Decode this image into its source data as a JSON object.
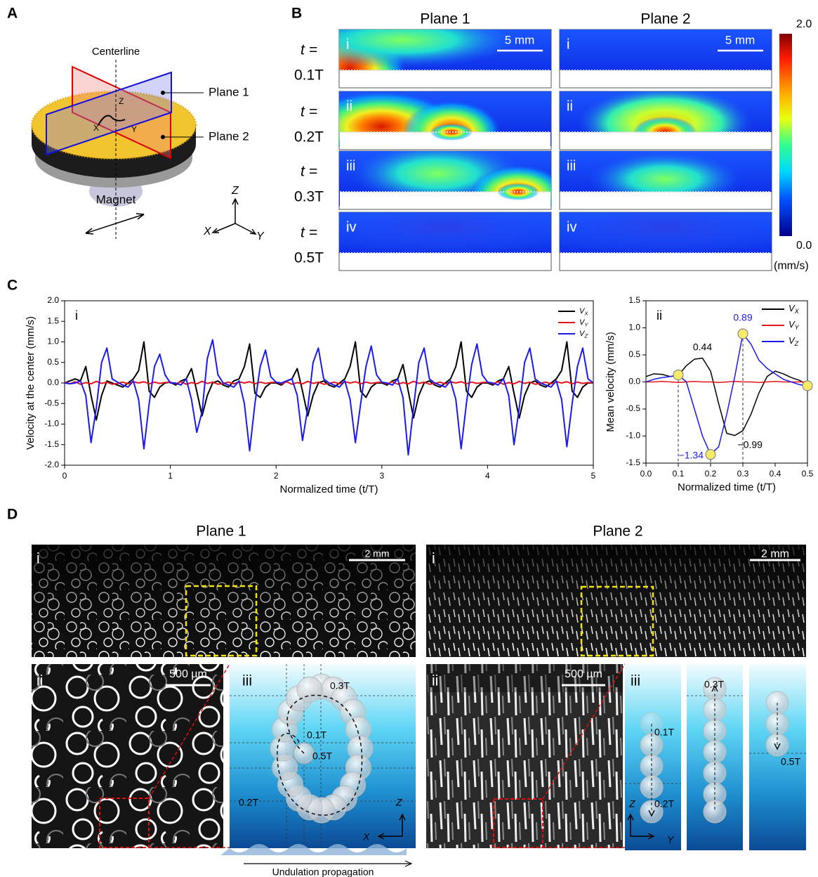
{
  "panel_labels": [
    "A",
    "B",
    "C",
    "D"
  ],
  "panel_a": {
    "centerline": "Centerline",
    "plane1": "Plane 1",
    "plane2": "Plane 2",
    "magnet": "Magnet",
    "inner_axes": [
      "Z",
      "X",
      "Y"
    ],
    "axes": [
      "Z",
      "X",
      "Y"
    ]
  },
  "panel_b": {
    "columns": [
      "Plane 1",
      "Plane 2"
    ],
    "rows": [
      {
        "t": "t =",
        "time": "0.1T"
      },
      {
        "t": "t =",
        "time": "0.2T"
      },
      {
        "t": "t =",
        "time": "0.3T"
      },
      {
        "t": "t =",
        "time": "0.5T"
      }
    ],
    "roman": [
      "i",
      "ii",
      "iii",
      "iv"
    ],
    "scale_bar": "5 mm",
    "colorbar": {
      "max": "2.0",
      "min": "0.0",
      "unit": "(mm/s)"
    }
  },
  "chart_data": [
    {
      "type": "line",
      "label": "i",
      "x_label": "Normalized time (t/T)",
      "y_label": "Velocity at the center (mm/s)",
      "xlim": [
        0,
        5
      ],
      "xticks": [
        0,
        1,
        2,
        3,
        4,
        5
      ],
      "ylim": [
        -2,
        2
      ],
      "yticks": [
        {
          "value": -2,
          "label": "-2.0"
        },
        -1.5,
        {
          "value": -1,
          "label": "-1.0"
        },
        -0.5,
        {
          "value": 0,
          "label": "0.0"
        },
        0.5,
        {
          "value": 1,
          "label": "1.0"
        },
        1.5,
        {
          "value": 2,
          "label": "2.0"
        }
      ],
      "grid": false,
      "legend": "upper right",
      "x": [
        0,
        0.05,
        0.1,
        0.15,
        0.2,
        0.25,
        0.3,
        0.35,
        0.4,
        0.45,
        0.5,
        0.55,
        0.6,
        0.65,
        0.7,
        0.75,
        0.8,
        0.85,
        0.9,
        0.95,
        1,
        1.05,
        1.1,
        1.15,
        1.2,
        1.25,
        1.3,
        1.35,
        1.4,
        1.45,
        1.5,
        1.55,
        1.6,
        1.65,
        1.7,
        1.75,
        1.8,
        1.85,
        1.9,
        1.95,
        2,
        2.05,
        2.1,
        2.15,
        2.2,
        2.25,
        2.3,
        2.35,
        2.4,
        2.45,
        2.5,
        2.55,
        2.6,
        2.65,
        2.7,
        2.75,
        2.8,
        2.85,
        2.9,
        2.95,
        3,
        3.05,
        3.1,
        3.15,
        3.2,
        3.25,
        3.3,
        3.35,
        3.4,
        3.45,
        3.5,
        3.55,
        3.6,
        3.65,
        3.7,
        3.75,
        3.8,
        3.85,
        3.9,
        3.95,
        4,
        4.05,
        4.1,
        4.15,
        4.2,
        4.25,
        4.3,
        4.35,
        4.4,
        4.45,
        4.5,
        4.55,
        4.6,
        4.65,
        4.7,
        4.75,
        4.8,
        4.85,
        4.9,
        4.95,
        5
      ],
      "series": [
        {
          "name": "VX",
          "color": "#000000",
          "values": [
            0,
            0.05,
            0.1,
            0.05,
            0.4,
            -0.3,
            -0.9,
            -0.3,
            0.05,
            0.0,
            -0.05,
            -0.1,
            0.0,
            0.1,
            0.3,
            1.0,
            -0.2,
            -0.35,
            -0.1,
            0.0,
            0.02,
            -0.05,
            0.05,
            0.1,
            0.35,
            -0.2,
            -0.8,
            -0.3,
            0.0,
            0.05,
            -0.05,
            -0.1,
            0.05,
            0.1,
            0.4,
            0.95,
            -0.25,
            -0.35,
            -0.1,
            0.0,
            0.0,
            -0.05,
            0.05,
            0.1,
            0.35,
            -0.2,
            -0.8,
            -0.3,
            0.0,
            0.05,
            -0.05,
            -0.1,
            0.0,
            0.1,
            0.4,
            1.0,
            -0.2,
            -0.35,
            -0.1,
            0.0,
            0.0,
            -0.05,
            0.05,
            0.1,
            0.45,
            -0.2,
            -0.85,
            -0.3,
            0.0,
            0.05,
            -0.05,
            -0.1,
            0.0,
            0.1,
            0.4,
            1.0,
            -0.2,
            -0.35,
            -0.1,
            0.0,
            0.0,
            -0.05,
            0.05,
            0.1,
            0.4,
            -0.25,
            -0.85,
            -0.3,
            0.0,
            0.05,
            -0.05,
            -0.1,
            0.0,
            0.1,
            0.3,
            1.0,
            -0.2,
            -0.35,
            -0.1,
            0.0,
            0.0
          ]
        },
        {
          "name": "VY",
          "color": "#e8141b",
          "values": [
            0.02,
            -0.02,
            0.03,
            -0.03,
            0.01,
            -0.02,
            0.04,
            -0.01,
            0.02,
            -0.03,
            -0.01,
            0.02,
            -0.02,
            0.03,
            0.0,
            0.03,
            -0.02,
            0.02,
            -0.01,
            0.01,
            0.02,
            -0.02,
            0.03,
            -0.03,
            0.01,
            -0.02,
            0.04,
            -0.01,
            0.02,
            -0.03,
            -0.01,
            0.02,
            -0.02,
            0.03,
            0.0,
            0.03,
            -0.02,
            0.02,
            -0.01,
            0.01,
            0.02,
            -0.02,
            0.03,
            -0.03,
            0.01,
            -0.02,
            0.04,
            -0.01,
            0.02,
            -0.03,
            -0.01,
            0.02,
            -0.02,
            0.03,
            0.0,
            0.03,
            -0.02,
            0.02,
            -0.01,
            0.01,
            0.02,
            -0.02,
            0.03,
            -0.03,
            0.01,
            -0.02,
            0.04,
            -0.01,
            0.02,
            -0.03,
            -0.01,
            0.02,
            -0.02,
            0.03,
            0.0,
            0.03,
            -0.02,
            0.02,
            -0.01,
            0.01,
            0.02,
            -0.02,
            0.03,
            -0.03,
            0.01,
            -0.02,
            0.04,
            -0.01,
            0.02,
            -0.03,
            -0.01,
            0.02,
            -0.02,
            0.03,
            0.0,
            0.03,
            -0.02,
            0.02,
            -0.01,
            0.01,
            0.0
          ]
        },
        {
          "name": "VZ",
          "color": "#1a1aee",
          "values": [
            0,
            -0.02,
            0.0,
            0.05,
            -0.3,
            -1.45,
            -0.6,
            0.5,
            0.85,
            0.1,
            0.02,
            -0.05,
            -0.1,
            0.05,
            -0.4,
            -1.6,
            -0.5,
            0.4,
            0.7,
            0.2,
            0,
            0.0,
            -0.05,
            0.1,
            -0.4,
            -1.2,
            -0.7,
            0.6,
            1.05,
            0.2,
            0.0,
            -0.05,
            -0.1,
            0.05,
            -0.5,
            -1.65,
            -0.5,
            0.4,
            0.8,
            0.15,
            0.02,
            0.0,
            0.05,
            0.1,
            -0.3,
            -1.4,
            -0.6,
            0.5,
            0.85,
            0.1,
            0,
            -0.05,
            -0.1,
            0.05,
            -0.4,
            -1.45,
            -0.5,
            0.4,
            0.9,
            0.2,
            0.02,
            0.0,
            -0.05,
            0.1,
            -0.35,
            -1.75,
            -0.6,
            0.5,
            0.85,
            0.1,
            0,
            -0.05,
            -0.1,
            0.05,
            -0.4,
            -1.6,
            -0.5,
            0.45,
            0.95,
            0.2,
            0.02,
            0.0,
            -0.05,
            0.1,
            -0.3,
            -1.5,
            -0.6,
            0.5,
            0.85,
            0.1,
            0,
            -0.05,
            -0.1,
            0.05,
            -0.4,
            -1.55,
            -0.5,
            0.4,
            0.85,
            0.1,
            0.0
          ]
        }
      ]
    },
    {
      "type": "line",
      "label": "ii",
      "x_label": "Normalized time (t/T)",
      "y_label": "Mean velocity (mm/s)",
      "xlim": [
        0,
        0.5
      ],
      "xticks": [
        {
          "value": 0,
          "label": "0.0"
        },
        0.1,
        0.2,
        0.3,
        0.4,
        0.5
      ],
      "ylim": [
        -1.5,
        1.5
      ],
      "yticks": [
        -1.5,
        {
          "value": -1,
          "label": "-1.0"
        },
        -0.5,
        {
          "value": 0,
          "label": "0.0"
        },
        0.5,
        {
          "value": 1,
          "label": "1.0"
        },
        1.5
      ],
      "grid": false,
      "legend": "upper right",
      "x": [
        0,
        0.025,
        0.05,
        0.075,
        0.1,
        0.125,
        0.15,
        0.175,
        0.2,
        0.225,
        0.25,
        0.275,
        0.3,
        0.325,
        0.35,
        0.375,
        0.4,
        0.425,
        0.45,
        0.475,
        0.5
      ],
      "series": [
        {
          "name": "VX",
          "color": "#000000",
          "values": [
            0.1,
            0.15,
            0.14,
            0.1,
            0.12,
            0.3,
            0.42,
            0.44,
            0.2,
            -0.4,
            -0.95,
            -0.99,
            -0.9,
            -0.6,
            -0.2,
            0.1,
            0.2,
            0.15,
            0.08,
            0.03,
            -0.05
          ]
        },
        {
          "name": "VY",
          "color": "#e8141b",
          "values": [
            0,
            0,
            0.01,
            0,
            -0.01,
            0,
            0.01,
            0,
            0,
            -0.01,
            0,
            0.01,
            0,
            0,
            -0.01,
            0,
            0.01,
            0,
            0,
            0,
            0
          ]
        },
        {
          "name": "VZ",
          "color": "#1a1aee",
          "values": [
            0.0,
            0.05,
            0.08,
            0.1,
            0.13,
            0.0,
            -0.5,
            -1.0,
            -1.34,
            -1.2,
            -0.6,
            0.1,
            0.89,
            0.7,
            0.4,
            0.25,
            0.15,
            0.05,
            0.0,
            -0.05,
            -0.07
          ]
        }
      ],
      "annotations": [
        {
          "text": "0.44",
          "color": "#000000"
        },
        {
          "text": "−0.99",
          "color": "#000000"
        },
        {
          "text": "0.89",
          "color": "#1a1aee"
        },
        {
          "text": "−1.34",
          "color": "#1a1aee"
        }
      ]
    }
  ],
  "panel_d": {
    "plane1": {
      "title": "Plane 1",
      "sub": [
        "i",
        "ii",
        "iii"
      ],
      "scale_i": "2 mm",
      "scale_ii": "500 µm",
      "times": [
        "0.3T",
        "0.1T",
        "0.5T",
        "0.2T"
      ],
      "axes": [
        "Z",
        "X"
      ],
      "propagation": "Undulation propagation"
    },
    "plane2": {
      "title": "Plane 2",
      "sub": [
        "i",
        "ii",
        "iii"
      ],
      "scale_i": "2 mm",
      "scale_ii": "500 µm",
      "times": [
        "0.1T",
        "0.2T",
        "0.3T",
        "0.5T"
      ],
      "axes": [
        "Z",
        "Y"
      ]
    }
  }
}
